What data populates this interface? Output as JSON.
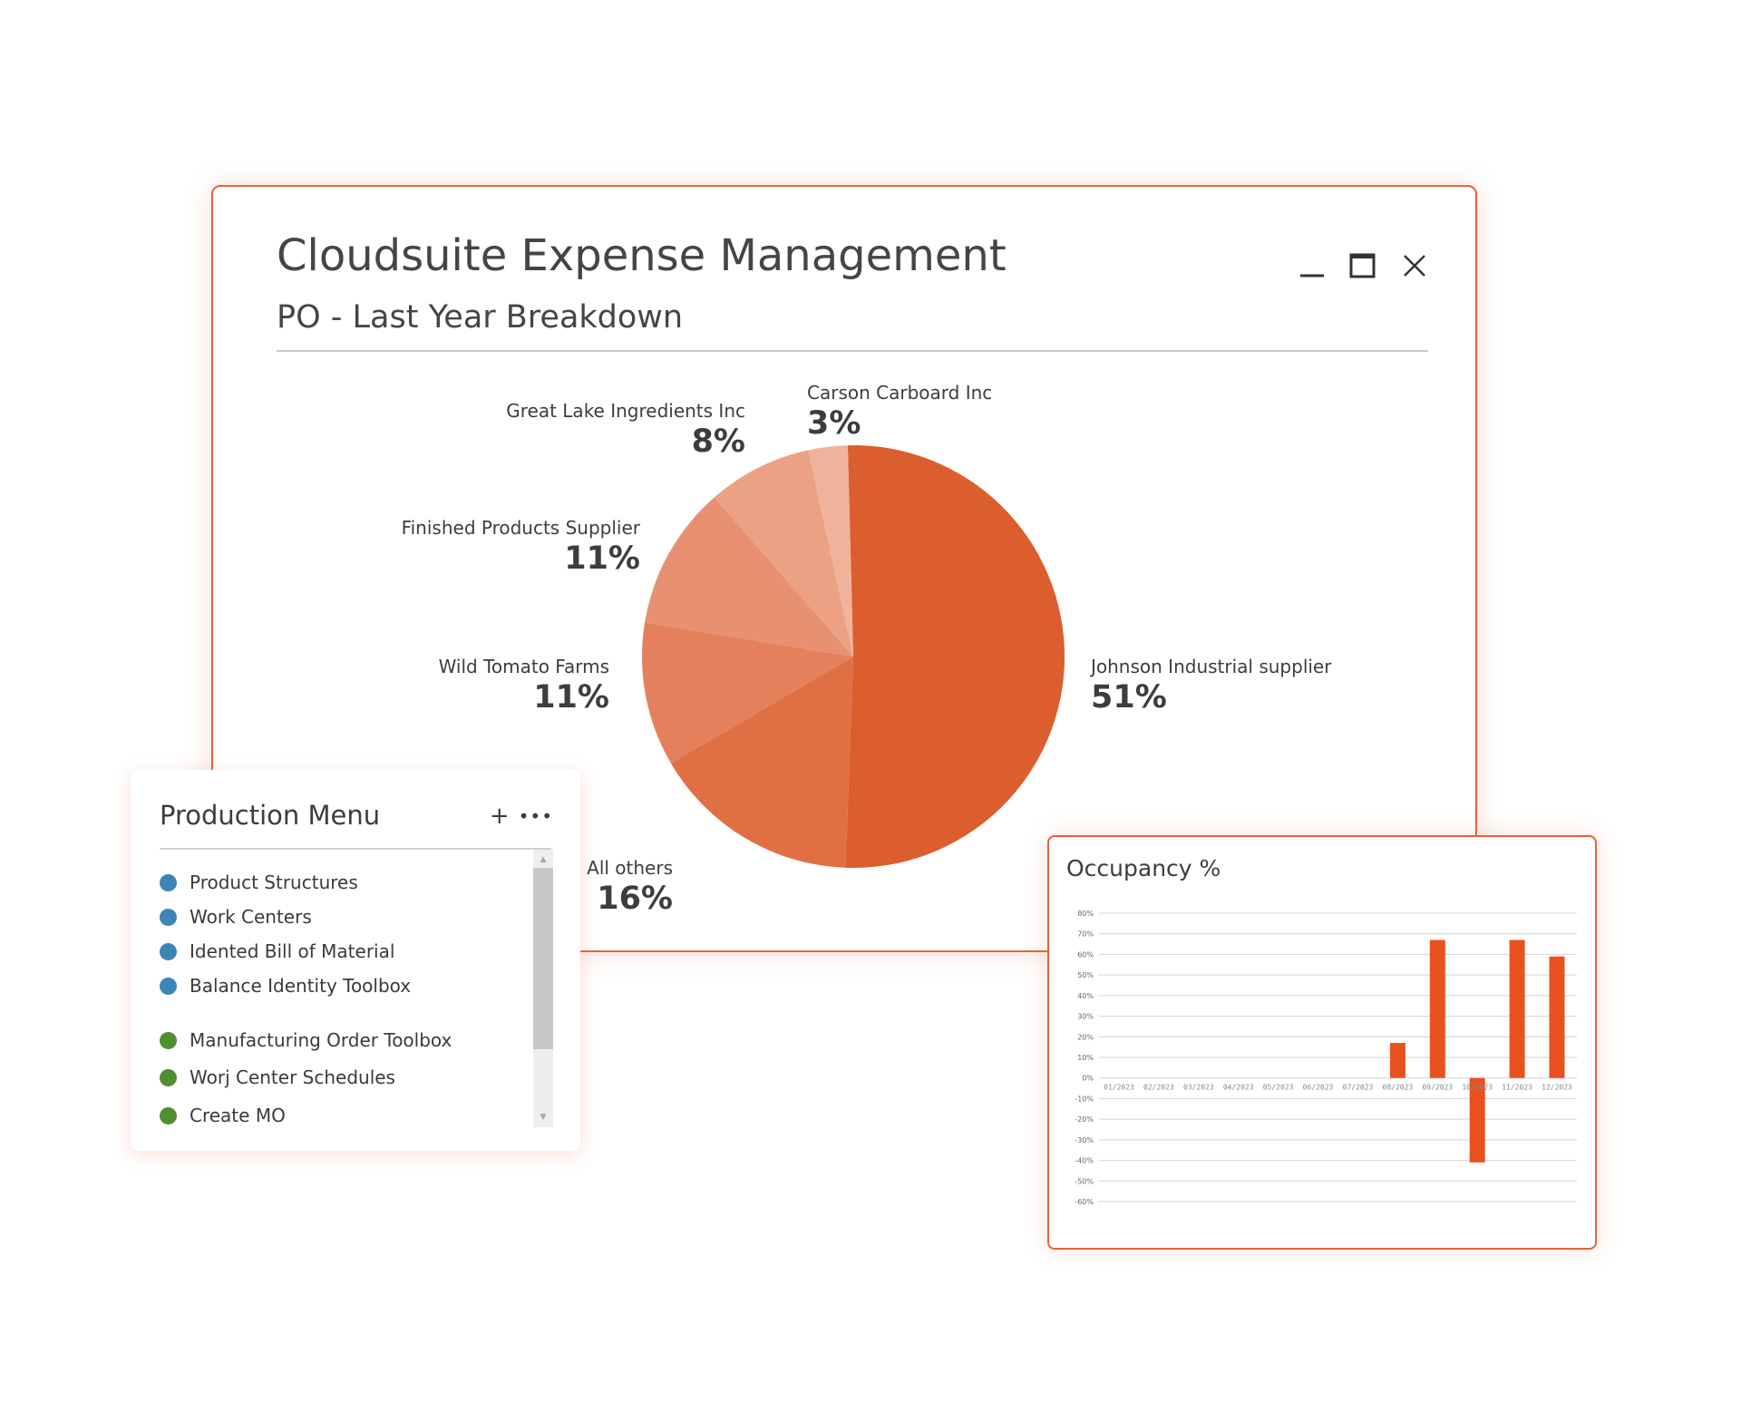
{
  "main_window": {
    "title": "Cloudsuite Expense Management",
    "subtitle": "PO - Last Year Breakdown",
    "controls": [
      "minimize-icon",
      "maximize-icon",
      "close-icon"
    ]
  },
  "production_menu": {
    "title": "Production Menu",
    "add_label": "+",
    "more_label": "•••",
    "items": [
      {
        "label": "Product Structures",
        "color": "#3d85b5"
      },
      {
        "label": "Work Centers",
        "color": "#3d85b5"
      },
      {
        "label": "Idented Bill of Material",
        "color": "#3d85b5"
      },
      {
        "label": "Balance Identity Toolbox",
        "color": "#3d85b5"
      },
      {
        "label": "Manufacturing Order Toolbox",
        "color": "#4f8f2f"
      },
      {
        "label": "Worj Center Schedules",
        "color": "#4f8f2f"
      },
      {
        "label": "Create MO",
        "color": "#4f8f2f"
      }
    ],
    "scroll_up": "▲",
    "scroll_down": "▼"
  },
  "occupancy": {
    "title": "Occupancy %"
  },
  "chart_data": [
    {
      "type": "pie",
      "title": "PO - Last Year Breakdown",
      "slices": [
        {
          "label": "Johnson Industrial supplier",
          "value": 51,
          "display": "51%",
          "color": "#dc5e2e"
        },
        {
          "label": "All others",
          "value": 16,
          "display": "16%",
          "color": "#e06f44"
        },
        {
          "label": "Wild Tomato Farms",
          "value": 11,
          "display": "11%",
          "color": "#e4815c"
        },
        {
          "label": "Finished Products Supplier",
          "value": 11,
          "display": "11%",
          "color": "#e89171"
        },
        {
          "label": "Great Lake Ingredients Inc",
          "value": 8,
          "display": "8%",
          "color": "#eca184"
        },
        {
          "label": "Carson Carboard Inc",
          "value": 3,
          "display": "3%",
          "color": "#efb39b"
        }
      ]
    },
    {
      "type": "bar",
      "title": "Occupancy %",
      "categories": [
        "01/2023",
        "02/2023",
        "03/2023",
        "04/2023",
        "05/2023",
        "06/2023",
        "07/2023",
        "08/2023",
        "09/2023",
        "10/2023",
        "11/2023",
        "12/2023"
      ],
      "values": [
        0,
        0,
        0,
        0,
        0,
        0,
        0,
        17,
        67,
        -41,
        67,
        59
      ],
      "ylim": [
        -60,
        80
      ],
      "yticks": [
        "80%",
        "70%",
        "60%",
        "50%",
        "40%",
        "30%",
        "20%",
        "10%",
        "0%",
        "-10%",
        "-20%",
        "-30%",
        "-40%",
        "-50%",
        "-60%"
      ],
      "grid": true,
      "bar_color": "#e8521f"
    }
  ]
}
